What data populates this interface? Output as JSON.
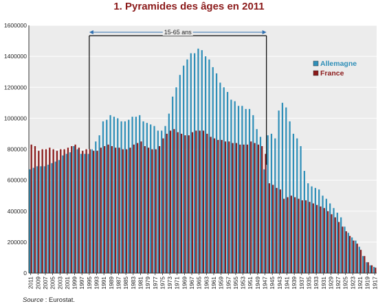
{
  "source": {
    "label": "Source",
    "text": " : Eurostat."
  },
  "colors": {
    "allemagne": "#2f8fb8",
    "france": "#8b1a1a",
    "plot_bg": "#ececec",
    "grid": "#ffffff"
  },
  "chart_data": {
    "type": "bar",
    "title": "1. Pyramides des âges en 2011",
    "xlabel": "",
    "ylabel": "",
    "ylim": [
      0,
      1600000
    ],
    "yticks": [
      0,
      200000,
      400000,
      600000,
      800000,
      1000000,
      1200000,
      1400000,
      1600000
    ],
    "grid": true,
    "legend": "right",
    "annotation": {
      "text": "15-65 ans",
      "from": "1995",
      "to": "1947"
    },
    "categories": [
      "2011",
      "2010",
      "2009",
      "2008",
      "2007",
      "2006",
      "2005",
      "2004",
      "2003",
      "2002",
      "2001",
      "2000",
      "1999",
      "1998",
      "1997",
      "1996",
      "1995",
      "1994",
      "1993",
      "1992",
      "1991",
      "1990",
      "1989",
      "1988",
      "1987",
      "1986",
      "1985",
      "1984",
      "1983",
      "1982",
      "1981",
      "1980",
      "1979",
      "1978",
      "1977",
      "1976",
      "1975",
      "1974",
      "1973",
      "1972",
      "1971",
      "1970",
      "1969",
      "1968",
      "1967",
      "1966",
      "1965",
      "1964",
      "1963",
      "1962",
      "1961",
      "1960",
      "1959",
      "1958",
      "1957",
      "1956",
      "1955",
      "1954",
      "1953",
      "1952",
      "1951",
      "1950",
      "1949",
      "1948",
      "1947",
      "1946",
      "1945",
      "1944",
      "1943",
      "1942",
      "1941",
      "1940",
      "1939",
      "1938",
      "1937",
      "1936",
      "1935",
      "1934",
      "1933",
      "1932",
      "1931",
      "1930",
      "1929",
      "1928",
      "1927",
      "1926",
      "1925",
      "1924",
      "1923",
      "1922",
      "1921",
      "1920",
      "1919",
      "1918",
      "1917"
    ],
    "xtick_labels": [
      "2011",
      "2009",
      "2007",
      "2005",
      "2003",
      "2001",
      "1999",
      "1997",
      "1995",
      "1993",
      "1991",
      "1989",
      "1987",
      "1985",
      "1983",
      "1981",
      "1979",
      "1977",
      "1975",
      "1973",
      "1971",
      "1969",
      "1967",
      "1965",
      "1963",
      "1961",
      "1959",
      "1957",
      "1955",
      "1953",
      "1951",
      "1949",
      "1947",
      "1945",
      "1943",
      "1941",
      "1939",
      "1937",
      "1935",
      "1933",
      "1931",
      "1929",
      "1927",
      "1925",
      "1923",
      "1921",
      "1919",
      "1917"
    ],
    "series": [
      {
        "name": "Allemagne",
        "values": [
          670000,
          680000,
          690000,
          690000,
          690000,
          700000,
          710000,
          720000,
          730000,
          760000,
          770000,
          780000,
          820000,
          800000,
          770000,
          770000,
          770000,
          800000,
          850000,
          890000,
          980000,
          990000,
          1020000,
          1010000,
          1000000,
          980000,
          980000,
          990000,
          1010000,
          1010000,
          1020000,
          980000,
          970000,
          960000,
          950000,
          920000,
          920000,
          950000,
          1030000,
          1140000,
          1200000,
          1280000,
          1340000,
          1380000,
          1420000,
          1420000,
          1450000,
          1440000,
          1400000,
          1380000,
          1330000,
          1290000,
          1230000,
          1200000,
          1170000,
          1120000,
          1110000,
          1080000,
          1080000,
          1060000,
          1060000,
          1020000,
          930000,
          880000,
          670000,
          890000,
          900000,
          870000,
          1050000,
          1100000,
          1070000,
          980000,
          900000,
          870000,
          820000,
          660000,
          580000,
          560000,
          550000,
          540000,
          500000,
          480000,
          450000,
          420000,
          390000,
          360000,
          300000,
          260000,
          230000,
          210000,
          170000,
          110000,
          70000,
          50000,
          40000
        ]
      },
      {
        "name": "France",
        "values": [
          830000,
          820000,
          790000,
          800000,
          800000,
          810000,
          800000,
          790000,
          800000,
          800000,
          810000,
          820000,
          830000,
          810000,
          790000,
          800000,
          800000,
          790000,
          790000,
          810000,
          820000,
          830000,
          820000,
          810000,
          810000,
          800000,
          800000,
          810000,
          830000,
          840000,
          850000,
          820000,
          810000,
          800000,
          800000,
          820000,
          870000,
          900000,
          920000,
          930000,
          910000,
          900000,
          890000,
          890000,
          910000,
          920000,
          920000,
          920000,
          900000,
          880000,
          870000,
          860000,
          860000,
          850000,
          850000,
          840000,
          840000,
          830000,
          830000,
          830000,
          850000,
          840000,
          830000,
          820000,
          770000,
          580000,
          570000,
          550000,
          540000,
          480000,
          490000,
          500000,
          490000,
          480000,
          470000,
          470000,
          460000,
          450000,
          440000,
          430000,
          420000,
          400000,
          380000,
          360000,
          330000,
          300000,
          270000,
          240000,
          210000,
          190000,
          150000,
          110000,
          70000,
          50000,
          35000
        ]
      }
    ]
  }
}
